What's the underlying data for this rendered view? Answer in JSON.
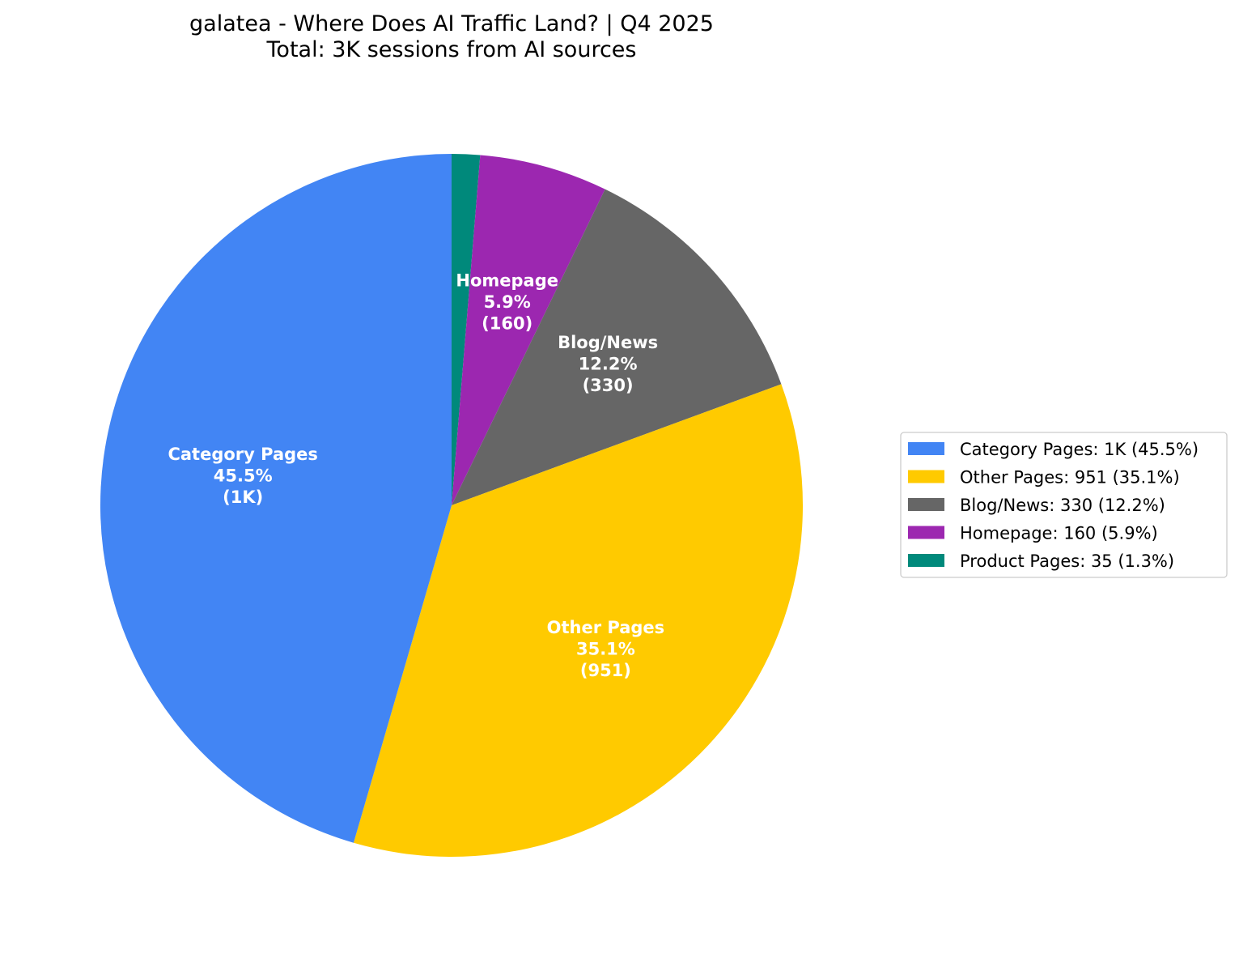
{
  "chart_data": {
    "type": "pie",
    "title": "galatea - Where Does AI Traffic Land? | Q4 2025",
    "subtitle": "Total: 3K sessions from AI sources",
    "start_angle_deg": 90,
    "direction": "clockwise",
    "slices": [
      {
        "name": "Product Pages",
        "value": 35,
        "percent": 1.3,
        "color": "#00897B",
        "label_lines": [],
        "legend": "Product Pages: 35 (1.3%)"
      },
      {
        "name": "Homepage",
        "value": 160,
        "percent": 5.9,
        "color": "#9C27B0",
        "label_lines": [
          "Homepage",
          "5.9%",
          "(160)"
        ],
        "legend": "Homepage: 160 (5.9%)"
      },
      {
        "name": "Blog/News",
        "value": 330,
        "percent": 12.2,
        "color": "#666666",
        "label_lines": [
          "Blog/News",
          "12.2%",
          "(330)"
        ],
        "legend": "Blog/News: 330 (12.2%)"
      },
      {
        "name": "Other Pages",
        "value": 951,
        "percent": 35.1,
        "color": "#FFCA00",
        "label_lines": [
          "Other Pages",
          "35.1%",
          "(951)"
        ],
        "legend": "Other Pages: 951 (35.1%)"
      },
      {
        "name": "Category Pages",
        "value": 1233,
        "percent": 45.5,
        "color": "#4285F4",
        "label_lines": [
          "Category Pages",
          "45.5%",
          "(1K)"
        ],
        "legend": "Category Pages: 1K (45.5%)"
      }
    ],
    "legend_order": [
      "Category Pages",
      "Other Pages",
      "Blog/News",
      "Homepage",
      "Product Pages"
    ],
    "legend_placement": "right"
  }
}
